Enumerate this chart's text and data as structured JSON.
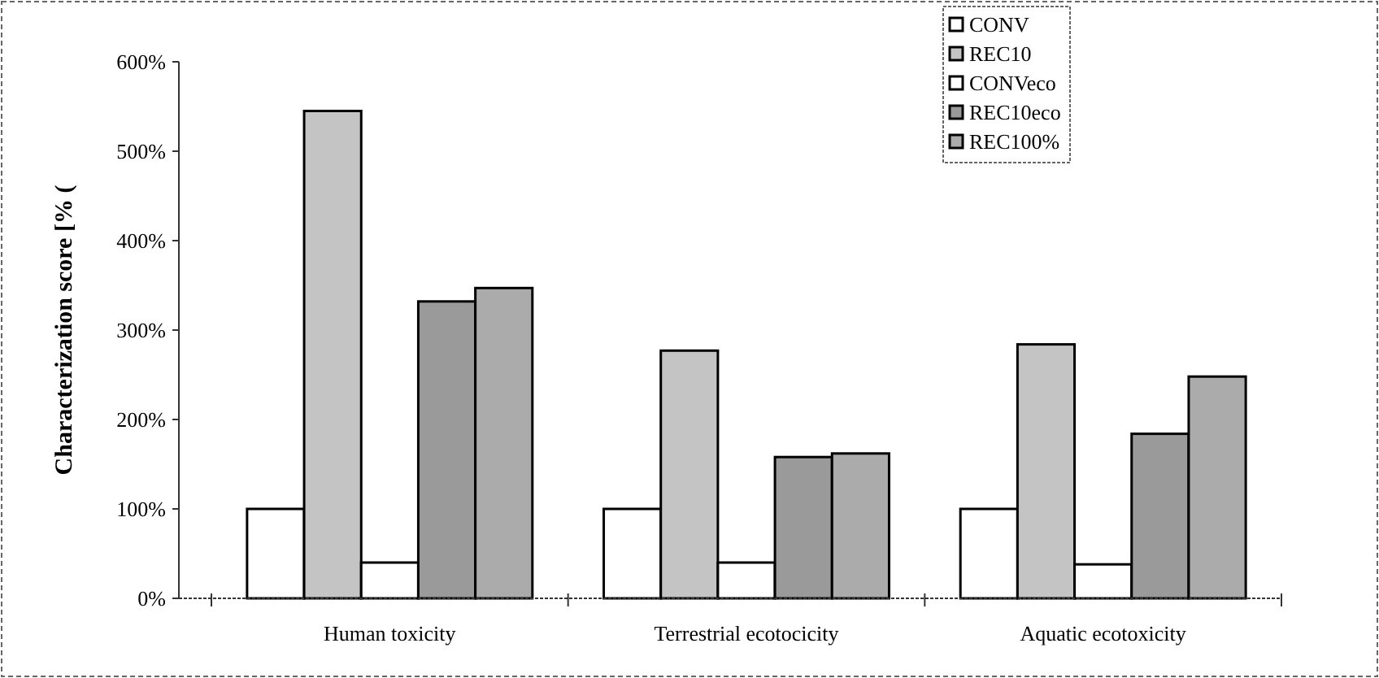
{
  "chart_data": {
    "type": "bar",
    "ylabel": "Characterization score [% (",
    "categories": [
      "Human toxicity",
      "Terrestrial ecotocicity",
      "Aquatic ecotoxicity"
    ],
    "series": [
      {
        "name": "CONV",
        "color": "#ffffff",
        "values": [
          100,
          100,
          100
        ]
      },
      {
        "name": "REC10",
        "color": "#c4c4c4",
        "values": [
          545,
          277,
          284
        ]
      },
      {
        "name": "CONVeco",
        "color": "#ffffff",
        "values": [
          40,
          40,
          38
        ]
      },
      {
        "name": "REC10eco",
        "color": "#9a9a9a",
        "values": [
          332,
          158,
          184
        ]
      },
      {
        "name": "REC100%",
        "color": "#ababab",
        "values": [
          347,
          162,
          248
        ]
      }
    ],
    "ylim": [
      0,
      600
    ],
    "yticks": [
      {
        "value": 0,
        "label": "0%"
      },
      {
        "value": 100,
        "label": "100%"
      },
      {
        "value": 200,
        "label": "200%"
      },
      {
        "value": 300,
        "label": "300%"
      },
      {
        "value": 400,
        "label": "400%"
      },
      {
        "value": 500,
        "label": "500%"
      },
      {
        "value": 600,
        "label": "600%"
      }
    ],
    "legend": "top right"
  }
}
